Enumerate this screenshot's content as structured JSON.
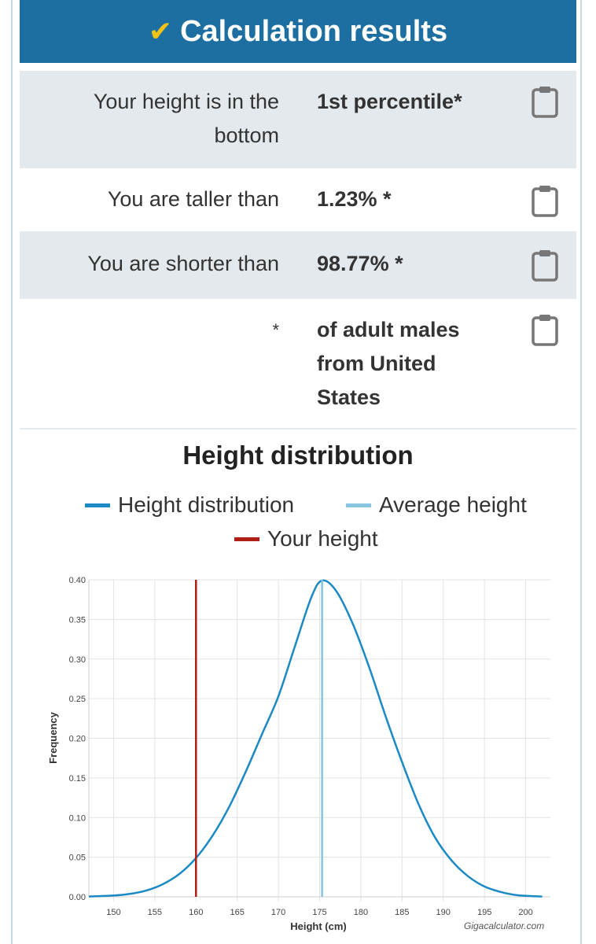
{
  "header": {
    "title": "Calculation results"
  },
  "results": [
    {
      "label_line1": "Your height is in the",
      "label_line2": "bottom",
      "value": "1st percentile*"
    },
    {
      "label_line1": "You are taller than",
      "value": "1.23% *"
    },
    {
      "label_line1": "You are shorter than",
      "value": "98.77% *"
    },
    {
      "label_line1": "*",
      "value_line1": "of adult males",
      "value_line2": "from United",
      "value_line3": "States"
    }
  ],
  "chart_title": "Height distribution",
  "legend": {
    "dist": "Height distribution",
    "avg": "Average height",
    "yours": "Your height"
  },
  "credit": "Gigacalculator.com",
  "colors": {
    "header_bg": "#1d6fa1",
    "checkmark": "#f2c313",
    "distribution": "#1b8ac4",
    "average": "#86c5e0",
    "your_height": "#b01f16"
  },
  "chart_data": {
    "type": "line",
    "xlabel": "Height (cm)",
    "ylabel": "Frequency",
    "xlim": [
      147,
      203
    ],
    "ylim": [
      0,
      0.4
    ],
    "x_ticks": [
      150,
      155,
      160,
      165,
      170,
      175,
      180,
      185,
      190,
      195,
      200
    ],
    "y_ticks": [
      "0.00",
      "0.05",
      "0.10",
      "0.15",
      "0.20",
      "0.25",
      "0.30",
      "0.35",
      "0.40"
    ],
    "series": [
      {
        "name": "Height distribution",
        "x": [
          147,
          150,
          152,
          154,
          156,
          158,
          160,
          162,
          164,
          166,
          168,
          170,
          172,
          174,
          175.3,
          177,
          179,
          181,
          183,
          185,
          187,
          189,
          191,
          193,
          195,
          197,
          199,
          202
        ],
        "values": [
          0.0004,
          0.0016,
          0.0037,
          0.008,
          0.016,
          0.029,
          0.049,
          0.077,
          0.113,
          0.157,
          0.205,
          0.253,
          0.316,
          0.378,
          0.399,
          0.386,
          0.345,
          0.29,
          0.228,
          0.17,
          0.117,
          0.075,
          0.046,
          0.026,
          0.013,
          0.006,
          0.002,
          0.0004
        ]
      }
    ],
    "vertical_lines": [
      {
        "name": "Average height",
        "x": 175.3
      },
      {
        "name": "Your height",
        "x": 160
      }
    ],
    "grid": true
  }
}
